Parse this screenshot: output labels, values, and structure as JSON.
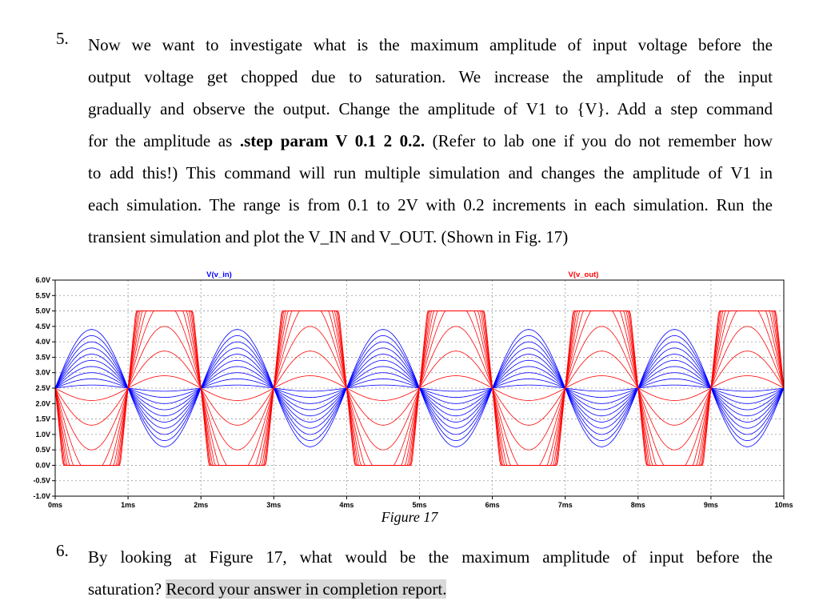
{
  "item5": {
    "number": "5.",
    "lines": [
      "Now we want to investigate what is the maximum amplitude of input voltage before the",
      "output voltage get chopped due to saturation. We increase the amplitude of the input",
      "gradually and observe the output. Change the amplitude of V1 to {V}. Add a step command",
      {
        "pre": "for the amplitude as ",
        "bold": ".step param V 0.1 2 0.2.",
        "post": " (Refer to lab one if you do not remember how"
      },
      "to add this!) This command will run multiple simulation and changes the amplitude of V1 in",
      "each simulation. The range is from 0.1 to 2V with 0.2 increments in each simulation. Run the",
      "transient simulation and plot the V_IN and V_OUT. (Shown in Fig. 17)"
    ]
  },
  "figure_caption": "Figure 17",
  "item6": {
    "number": "6.",
    "line1": "By looking at Figure 17, what would be the maximum amplitude of input before the",
    "line2_plain": "saturation? ",
    "line2_highlight": "Record your answer in completion report."
  },
  "chart_data": {
    "type": "line",
    "title": "",
    "xlabel": "",
    "ylabel": "",
    "x_unit": "ms",
    "xlim": [
      0,
      10
    ],
    "ylim": [
      -1.0,
      6.0
    ],
    "x_ticks": [
      "0ms",
      "1ms",
      "2ms",
      "3ms",
      "4ms",
      "5ms",
      "6ms",
      "7ms",
      "8ms",
      "9ms",
      "10ms"
    ],
    "y_ticks": [
      "6.0V",
      "5.5V",
      "5.0V",
      "4.5V",
      "4.0V",
      "3.5V",
      "3.0V",
      "2.5V",
      "2.0V",
      "1.5V",
      "1.0V",
      "0.5V",
      "0.0V",
      "-0.5V",
      "-1.0V"
    ],
    "y_tick_values": [
      6.0,
      5.5,
      5.0,
      4.5,
      4.0,
      3.5,
      3.0,
      2.5,
      2.0,
      1.5,
      1.0,
      0.5,
      0.0,
      -0.5,
      -1.0
    ],
    "grid": true,
    "series": [
      {
        "name": "V(v_in)",
        "color": "#0000ff",
        "shape": "sine",
        "period_ms": 2,
        "phase": "rising at 0ms",
        "offset_v": 2.5,
        "step_amplitudes_v": [
          0.1,
          0.3,
          0.5,
          0.7,
          0.9,
          1.1,
          1.3,
          1.5,
          1.7,
          1.9
        ]
      },
      {
        "name": "V(v_out)",
        "color": "#ff0000",
        "shape": "inverted amplified sine, clipped",
        "period_ms": 2,
        "phase": "falling at 0ms",
        "offset_v": 2.5,
        "clip_high_v": 5.0,
        "clip_low_v": 0.0,
        "step_peak_deviation_v": [
          0.4,
          1.2,
          2.0,
          2.8,
          3.6,
          4.4,
          5.2,
          6.0,
          6.8,
          7.6
        ]
      }
    ]
  }
}
